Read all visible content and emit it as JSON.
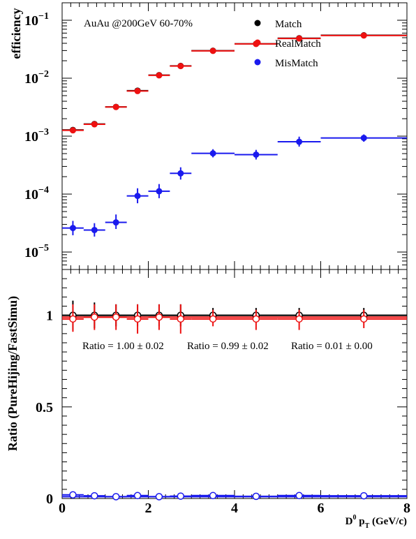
{
  "chart_data": [
    {
      "type": "scatter",
      "ylabel": "efficiency",
      "annotation": "AuAu @200GeV  60-70%",
      "xlim": [
        0,
        8
      ],
      "ylim": [
        5e-06,
        0.2
      ],
      "yscale": "log",
      "grid": false,
      "legend": {
        "placement": "top-right",
        "entries": [
          "Match",
          "RealMatch",
          "MisMatch"
        ]
      },
      "y_ticks": [
        {
          "value": 0.1,
          "base": "10",
          "exp": "−1"
        },
        {
          "value": 0.01,
          "base": "10",
          "exp": "−2"
        },
        {
          "value": 0.001,
          "base": "10",
          "exp": "−3"
        },
        {
          "value": 0.0001,
          "base": "10",
          "exp": "−4"
        },
        {
          "value": 1e-05,
          "base": "10",
          "exp": "−5"
        }
      ],
      "series": [
        {
          "name": "Match",
          "color": "#000000",
          "marker": "filled-circle",
          "points": [
            {
              "x": 0.25,
              "xlo": 0,
              "xhi": 0.5,
              "y": 0.00128,
              "ylo": 0.00118,
              "yhi": 0.00138
            },
            {
              "x": 0.75,
              "xlo": 0.5,
              "xhi": 1,
              "y": 0.00162,
              "ylo": 0.00152,
              "yhi": 0.00172
            },
            {
              "x": 1.25,
              "xlo": 1,
              "xhi": 1.5,
              "y": 0.0032,
              "ylo": 0.0031,
              "yhi": 0.0033
            },
            {
              "x": 1.75,
              "xlo": 1.5,
              "xhi": 2,
              "y": 0.0061,
              "ylo": 0.0059,
              "yhi": 0.0063
            },
            {
              "x": 2.25,
              "xlo": 2,
              "xhi": 2.5,
              "y": 0.0113,
              "ylo": 0.011,
              "yhi": 0.0116
            },
            {
              "x": 2.75,
              "xlo": 2.5,
              "xhi": 3,
              "y": 0.0163,
              "ylo": 0.0159,
              "yhi": 0.0167
            },
            {
              "x": 3.5,
              "xlo": 3,
              "xhi": 4,
              "y": 0.0298,
              "ylo": 0.0292,
              "yhi": 0.0304
            },
            {
              "x": 4.5,
              "xlo": 4,
              "xhi": 5,
              "y": 0.0392,
              "ylo": 0.0384,
              "yhi": 0.04
            },
            {
              "x": 5.5,
              "xlo": 5,
              "xhi": 6,
              "y": 0.049,
              "ylo": 0.048,
              "yhi": 0.05
            },
            {
              "x": 7,
              "xlo": 6,
              "xhi": 8,
              "y": 0.055,
              "ylo": 0.054,
              "yhi": 0.056
            }
          ]
        },
        {
          "name": "RealMatch",
          "color": "#ee1111",
          "marker": "filled-circle",
          "points": [
            {
              "x": 0.25,
              "xlo": 0,
              "xhi": 0.5,
              "y": 0.00126,
              "ylo": 0.00116,
              "yhi": 0.00136
            },
            {
              "x": 0.75,
              "xlo": 0.5,
              "xhi": 1,
              "y": 0.0016,
              "ylo": 0.0015,
              "yhi": 0.0017
            },
            {
              "x": 1.25,
              "xlo": 1,
              "xhi": 1.5,
              "y": 0.00318,
              "ylo": 0.00308,
              "yhi": 0.00328
            },
            {
              "x": 1.75,
              "xlo": 1.5,
              "xhi": 2,
              "y": 0.006,
              "ylo": 0.0058,
              "yhi": 0.0062
            },
            {
              "x": 2.25,
              "xlo": 2,
              "xhi": 2.5,
              "y": 0.0112,
              "ylo": 0.0109,
              "yhi": 0.0115
            },
            {
              "x": 2.75,
              "xlo": 2.5,
              "xhi": 3,
              "y": 0.0162,
              "ylo": 0.0158,
              "yhi": 0.0166
            },
            {
              "x": 3.5,
              "xlo": 3,
              "xhi": 4,
              "y": 0.0296,
              "ylo": 0.029,
              "yhi": 0.0302
            },
            {
              "x": 4.5,
              "xlo": 4,
              "xhi": 5,
              "y": 0.039,
              "ylo": 0.0382,
              "yhi": 0.0398
            },
            {
              "x": 5.5,
              "xlo": 5,
              "xhi": 6,
              "y": 0.0485,
              "ylo": 0.0475,
              "yhi": 0.0495
            },
            {
              "x": 7,
              "xlo": 6,
              "xhi": 8,
              "y": 0.0545,
              "ylo": 0.0535,
              "yhi": 0.0555
            }
          ]
        },
        {
          "name": "MisMatch",
          "color": "#1a1aee",
          "marker": "filled-circle",
          "points": [
            {
              "x": 0.25,
              "xlo": 0,
              "xhi": 0.5,
              "y": 2.6e-05,
              "ylo": 1.95e-05,
              "yhi": 3.45e-05
            },
            {
              "x": 0.75,
              "xlo": 0.5,
              "xhi": 1,
              "y": 2.4e-05,
              "ylo": 1.85e-05,
              "yhi": 3.15e-05
            },
            {
              "x": 1.25,
              "xlo": 1,
              "xhi": 1.5,
              "y": 3.25e-05,
              "ylo": 2.5e-05,
              "yhi": 4.45e-05
            },
            {
              "x": 1.75,
              "xlo": 1.5,
              "xhi": 2,
              "y": 9.3e-05,
              "ylo": 6.95e-05,
              "yhi": 0.000126
            },
            {
              "x": 2.25,
              "xlo": 2,
              "xhi": 2.5,
              "y": 0.000112,
              "ylo": 8.5e-05,
              "yhi": 0.000149
            },
            {
              "x": 2.75,
              "xlo": 2.5,
              "xhi": 3,
              "y": 0.000228,
              "ylo": 0.000178,
              "yhi": 0.00029
            },
            {
              "x": 3.5,
              "xlo": 3,
              "xhi": 4,
              "y": 0.000505,
              "ylo": 0.00043,
              "yhi": 0.000595
            },
            {
              "x": 4.5,
              "xlo": 4,
              "xhi": 5,
              "y": 0.00048,
              "ylo": 0.000395,
              "yhi": 0.00058
            },
            {
              "x": 5.5,
              "xlo": 5,
              "xhi": 6,
              "y": 0.0008,
              "ylo": 0.00066,
              "yhi": 0.00098
            },
            {
              "x": 7,
              "xlo": 6,
              "xhi": 8,
              "y": 0.00093,
              "ylo": 0.0008,
              "yhi": 0.00107
            }
          ]
        }
      ]
    },
    {
      "type": "scatter",
      "xlabel_base": "D",
      "xlabel_sup": "0",
      "xlabel_p": " p",
      "xlabel_sub": "T",
      "xlabel_unit": " (GeV/c)",
      "ylabel": "Ratio (PureHijing/FastSimu)",
      "xlim": [
        0,
        8
      ],
      "ylim": [
        0,
        1.25
      ],
      "grid": false,
      "x_ticks": [
        {
          "value": 0,
          "label": "0"
        },
        {
          "value": 2,
          "label": "2"
        },
        {
          "value": 4,
          "label": "4"
        },
        {
          "value": 6,
          "label": "6"
        },
        {
          "value": 8,
          "label": "8"
        }
      ],
      "y_ticks": [
        {
          "value": 0,
          "label": "0"
        },
        {
          "value": 0.5,
          "label": "0.5"
        },
        {
          "value": 1,
          "label": "1"
        }
      ],
      "ratio_labels": [
        "Ratio = 1.00 ± 0.02",
        "Ratio = 0.99 ± 0.02",
        "Ratio = 0.01 ± 0.00"
      ],
      "series": [
        {
          "name": "Match",
          "color": "#000000",
          "fit": 1.0,
          "marker": "open-circle",
          "points": [
            {
              "x": 0.25,
              "xlo": 0,
              "xhi": 0.5,
              "y": 1.0,
              "ylo": 0.92,
              "yhi": 1.08
            },
            {
              "x": 0.75,
              "xlo": 0.5,
              "xhi": 1,
              "y": 1.0,
              "ylo": 0.93,
              "yhi": 1.07
            },
            {
              "x": 1.25,
              "xlo": 1,
              "xhi": 1.5,
              "y": 1.0,
              "ylo": 0.94,
              "yhi": 1.06
            },
            {
              "x": 1.75,
              "xlo": 1.5,
              "xhi": 2,
              "y": 1.0,
              "ylo": 0.94,
              "yhi": 1.06
            },
            {
              "x": 2.25,
              "xlo": 2,
              "xhi": 2.5,
              "y": 1.0,
              "ylo": 0.94,
              "yhi": 1.06
            },
            {
              "x": 2.75,
              "xlo": 2.5,
              "xhi": 3,
              "y": 1.0,
              "ylo": 0.94,
              "yhi": 1.06
            },
            {
              "x": 3.5,
              "xlo": 3,
              "xhi": 4,
              "y": 1.0,
              "ylo": 0.96,
              "yhi": 1.04
            },
            {
              "x": 4.5,
              "xlo": 4,
              "xhi": 5,
              "y": 1.0,
              "ylo": 0.96,
              "yhi": 1.04
            },
            {
              "x": 5.5,
              "xlo": 5,
              "xhi": 6,
              "y": 1.0,
              "ylo": 0.96,
              "yhi": 1.04
            },
            {
              "x": 7,
              "xlo": 6,
              "xhi": 8,
              "y": 1.0,
              "ylo": 0.96,
              "yhi": 1.04
            }
          ]
        },
        {
          "name": "RealMatch",
          "color": "#ee1111",
          "fit": 0.99,
          "marker": "open-circle",
          "points": [
            {
              "x": 0.25,
              "xlo": 0,
              "xhi": 0.5,
              "y": 0.98,
              "ylo": 0.91,
              "yhi": 1.06
            },
            {
              "x": 0.75,
              "xlo": 0.5,
              "xhi": 1,
              "y": 0.99,
              "ylo": 0.92,
              "yhi": 1.06
            },
            {
              "x": 1.25,
              "xlo": 1,
              "xhi": 1.5,
              "y": 0.99,
              "ylo": 0.92,
              "yhi": 1.06
            },
            {
              "x": 1.75,
              "xlo": 1.5,
              "xhi": 2,
              "y": 0.98,
              "ylo": 0.9,
              "yhi": 1.06
            },
            {
              "x": 2.25,
              "xlo": 2,
              "xhi": 2.5,
              "y": 0.99,
              "ylo": 0.92,
              "yhi": 1.06
            },
            {
              "x": 2.75,
              "xlo": 2.5,
              "xhi": 3,
              "y": 0.98,
              "ylo": 0.9,
              "yhi": 1.06
            },
            {
              "x": 3.5,
              "xlo": 3,
              "xhi": 4,
              "y": 0.98,
              "ylo": 0.94,
              "yhi": 1.03
            },
            {
              "x": 4.5,
              "xlo": 4,
              "xhi": 5,
              "y": 0.98,
              "ylo": 0.92,
              "yhi": 1.03
            },
            {
              "x": 5.5,
              "xlo": 5,
              "xhi": 6,
              "y": 0.98,
              "ylo": 0.92,
              "yhi": 1.03
            },
            {
              "x": 7,
              "xlo": 6,
              "xhi": 8,
              "y": 0.98,
              "ylo": 0.93,
              "yhi": 1.03
            }
          ]
        },
        {
          "name": "MisMatch",
          "color": "#1a1aee",
          "fit": 0.01,
          "marker": "open-circle",
          "points": [
            {
              "x": 0.25,
              "xlo": 0,
              "xhi": 0.5,
              "y": 0.02,
              "ylo": 0.015,
              "yhi": 0.025
            },
            {
              "x": 0.75,
              "xlo": 0.5,
              "xhi": 1,
              "y": 0.015,
              "ylo": 0.011,
              "yhi": 0.019
            },
            {
              "x": 1.25,
              "xlo": 1,
              "xhi": 1.5,
              "y": 0.01,
              "ylo": 0.007,
              "yhi": 0.013
            },
            {
              "x": 1.75,
              "xlo": 1.5,
              "xhi": 2,
              "y": 0.016,
              "ylo": 0.012,
              "yhi": 0.02
            },
            {
              "x": 2.25,
              "xlo": 2,
              "xhi": 2.5,
              "y": 0.01,
              "ylo": 0.007,
              "yhi": 0.013
            },
            {
              "x": 2.75,
              "xlo": 2.5,
              "xhi": 3,
              "y": 0.013,
              "ylo": 0.01,
              "yhi": 0.016
            },
            {
              "x": 3.5,
              "xlo": 3,
              "xhi": 4,
              "y": 0.016,
              "ylo": 0.013,
              "yhi": 0.019
            },
            {
              "x": 4.5,
              "xlo": 4,
              "xhi": 5,
              "y": 0.012,
              "ylo": 0.009,
              "yhi": 0.015
            },
            {
              "x": 5.5,
              "xlo": 5,
              "xhi": 6,
              "y": 0.016,
              "ylo": 0.012,
              "yhi": 0.02
            },
            {
              "x": 7,
              "xlo": 6,
              "xhi": 8,
              "y": 0.015,
              "ylo": 0.012,
              "yhi": 0.018
            }
          ]
        }
      ]
    }
  ]
}
